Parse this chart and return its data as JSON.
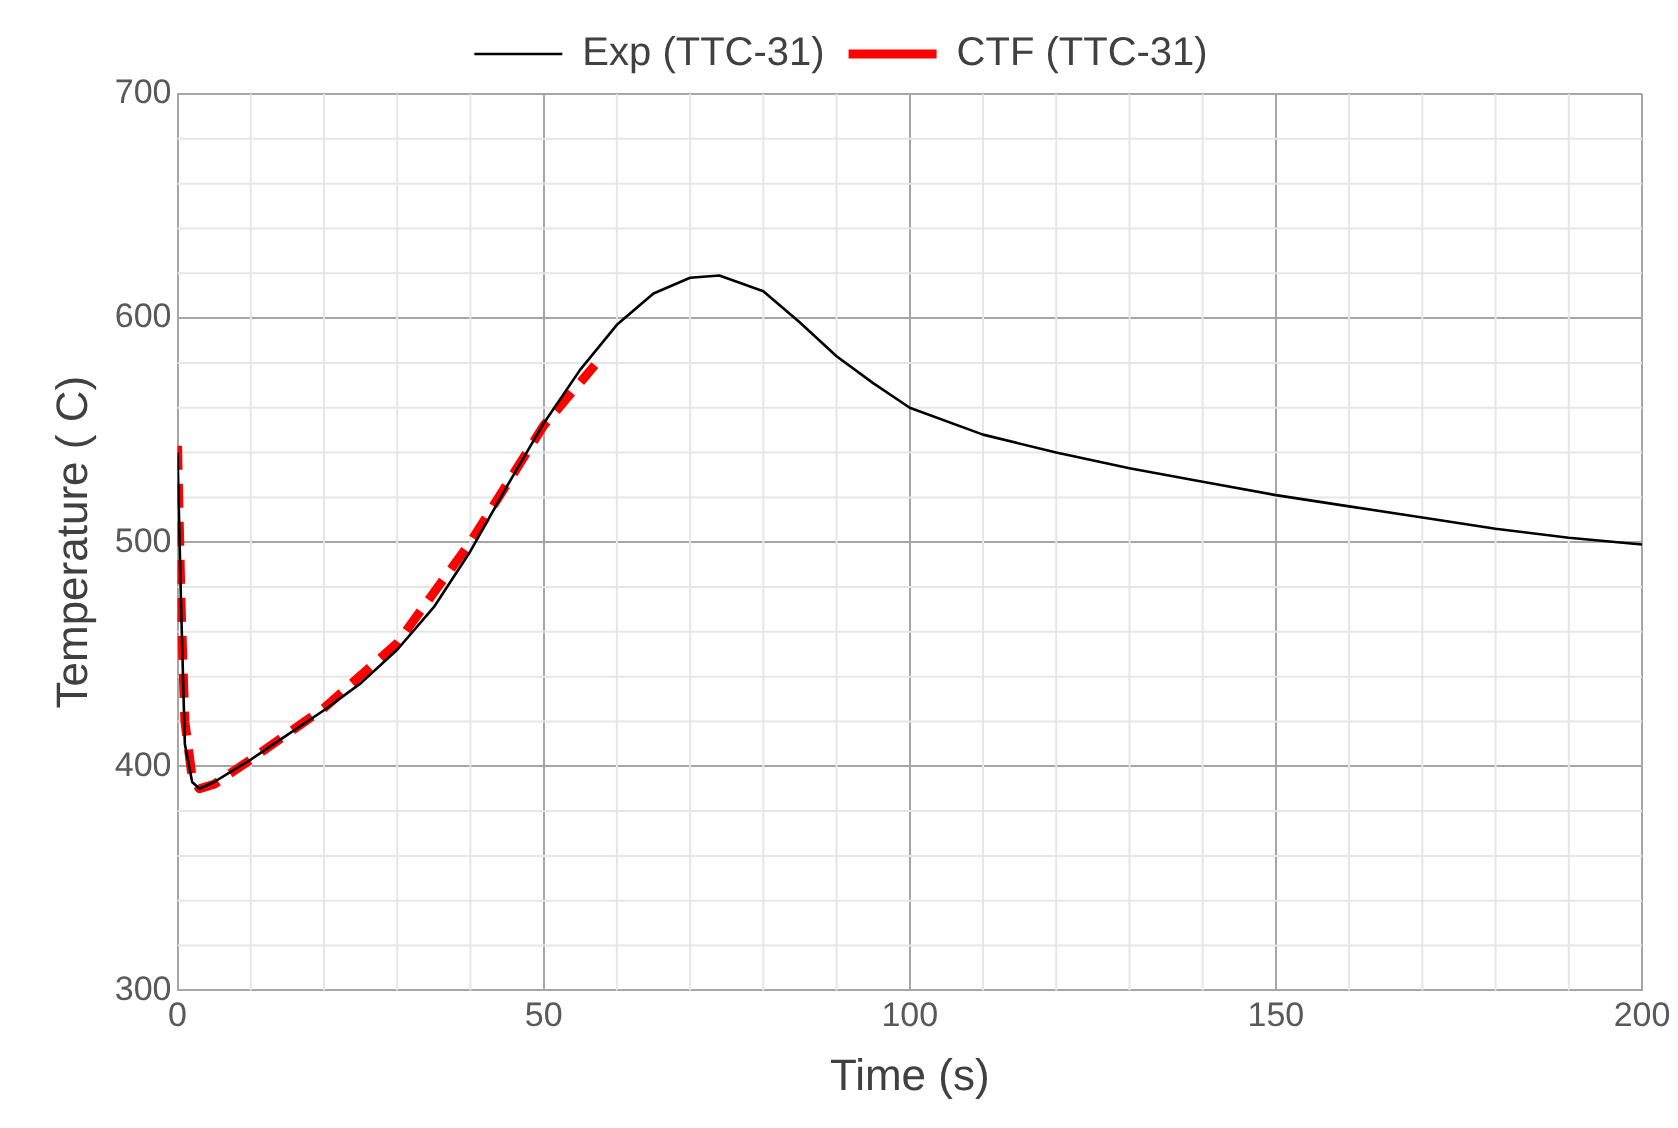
{
  "chart_data": {
    "type": "line",
    "xlabel": "Time (s)",
    "ylabel": "Temperature ( C)",
    "xlim": [
      0,
      200
    ],
    "xticks": [
      0,
      50,
      100,
      150,
      200
    ],
    "ylim": [
      300,
      700
    ],
    "yticks": [
      300,
      400,
      500,
      600,
      700
    ],
    "grid": true,
    "legend": "top",
    "marker": "none",
    "series": [
      {
        "name": "Exp (TTC-31)",
        "color": "#000000",
        "line_style": "solid",
        "x": [
          0,
          0.5,
          1,
          2,
          3,
          5,
          10,
          15,
          20,
          25,
          30,
          35,
          40,
          45,
          50,
          55,
          60,
          65,
          70,
          74,
          80,
          85,
          90,
          95,
          100,
          110,
          120,
          130,
          140,
          150,
          160,
          170,
          180,
          190,
          200
        ],
        "values": [
          540,
          470,
          410,
          393,
          390,
          393,
          403,
          414,
          425,
          437,
          452,
          471,
          496,
          525,
          553,
          577,
          597,
          611,
          618,
          619,
          612,
          598,
          583,
          571,
          560,
          548,
          540,
          533,
          527,
          521,
          516,
          511,
          506,
          502,
          499
        ]
      },
      {
        "name": "CTF (TTC-31)",
        "color": "#ff0000",
        "line_style": "dashed",
        "x": [
          0,
          0.5,
          1,
          2,
          3,
          5,
          10,
          20,
          30,
          40,
          50,
          57
        ],
        "values": [
          543,
          470,
          420,
          395,
          390,
          392,
          403,
          426,
          455,
          500,
          552,
          579
        ]
      }
    ]
  }
}
